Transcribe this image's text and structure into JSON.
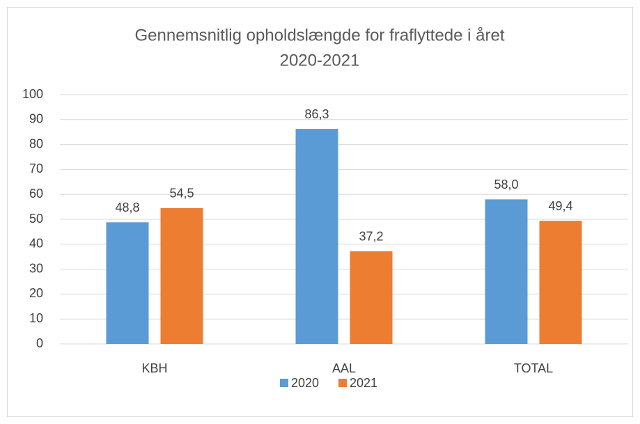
{
  "chart_data": {
    "type": "bar",
    "title": [
      "Gennemsnitlig opholdslængde for fraflyttede i året",
      "2020-2021"
    ],
    "categories": [
      "KBH",
      "AAL",
      "TOTAL"
    ],
    "series": [
      {
        "name": "2020",
        "color": "#5b9bd5",
        "values": [
          48.8,
          86.3,
          58.0
        ],
        "value_labels": [
          "48,8",
          "86,3",
          "58,0"
        ]
      },
      {
        "name": "2021",
        "color": "#ed7d31",
        "values": [
          54.5,
          37.2,
          49.4
        ],
        "value_labels": [
          "54,5",
          "37,2",
          "49,4"
        ]
      }
    ],
    "ylim": [
      0,
      100
    ],
    "yticks": [
      0,
      10,
      20,
      30,
      40,
      50,
      60,
      70,
      80,
      90,
      100
    ],
    "grid": true,
    "legend": "bottom"
  }
}
